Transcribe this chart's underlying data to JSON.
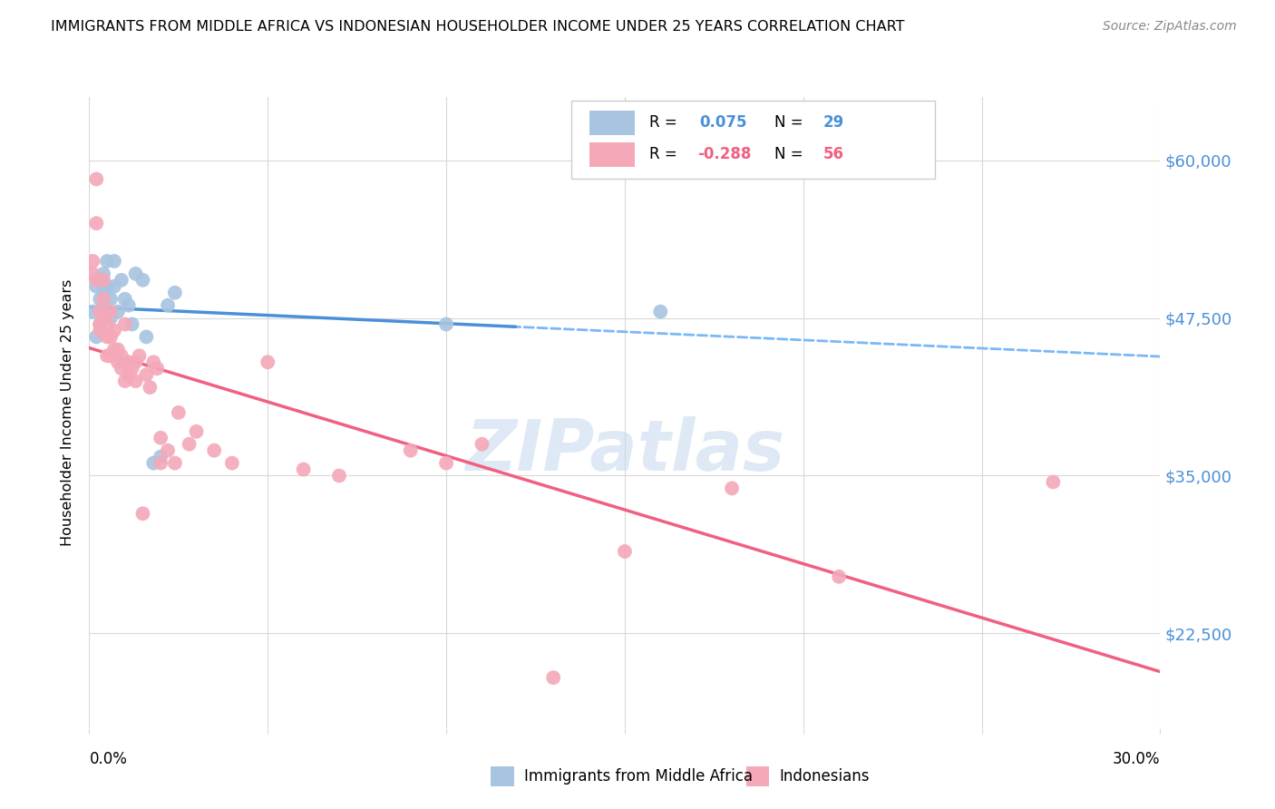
{
  "title": "IMMIGRANTS FROM MIDDLE AFRICA VS INDONESIAN HOUSEHOLDER INCOME UNDER 25 YEARS CORRELATION CHART",
  "source": "Source: ZipAtlas.com",
  "ylabel": "Householder Income Under 25 years",
  "yticks": [
    22500,
    35000,
    47500,
    60000
  ],
  "ytick_labels": [
    "$22,500",
    "$35,000",
    "$47,500",
    "$60,000"
  ],
  "xmin": 0.0,
  "xmax": 0.3,
  "ymin": 15000,
  "ymax": 65000,
  "color_blue": "#a8c4e0",
  "color_pink": "#f4a8b8",
  "line_blue_solid": "#4a90d9",
  "line_blue_dashed": "#7ab8f5",
  "line_pink": "#f06080",
  "watermark": "ZIPatlas",
  "r1": "0.075",
  "n1": "29",
  "r2": "-0.288",
  "n2": "56",
  "blue_scatter_x": [
    0.001,
    0.002,
    0.002,
    0.003,
    0.003,
    0.003,
    0.004,
    0.004,
    0.004,
    0.005,
    0.005,
    0.006,
    0.006,
    0.007,
    0.007,
    0.008,
    0.009,
    0.01,
    0.011,
    0.012,
    0.013,
    0.015,
    0.016,
    0.018,
    0.02,
    0.022,
    0.024,
    0.1,
    0.16
  ],
  "blue_scatter_y": [
    48000,
    50000,
    46000,
    50500,
    49000,
    47000,
    51000,
    49500,
    48500,
    52000,
    50000,
    49000,
    47500,
    52000,
    50000,
    48000,
    50500,
    49000,
    48500,
    47000,
    51000,
    50500,
    46000,
    36000,
    36500,
    48500,
    49500,
    47000,
    48000
  ],
  "pink_scatter_x": [
    0.001,
    0.001,
    0.002,
    0.002,
    0.002,
    0.003,
    0.003,
    0.003,
    0.004,
    0.004,
    0.004,
    0.005,
    0.005,
    0.005,
    0.006,
    0.006,
    0.006,
    0.007,
    0.007,
    0.008,
    0.008,
    0.009,
    0.009,
    0.01,
    0.01,
    0.011,
    0.011,
    0.012,
    0.013,
    0.013,
    0.014,
    0.015,
    0.016,
    0.017,
    0.018,
    0.019,
    0.02,
    0.02,
    0.022,
    0.024,
    0.025,
    0.028,
    0.03,
    0.035,
    0.04,
    0.05,
    0.06,
    0.07,
    0.09,
    0.1,
    0.11,
    0.13,
    0.15,
    0.18,
    0.21,
    0.27
  ],
  "pink_scatter_y": [
    52000,
    51000,
    58500,
    55000,
    50500,
    48000,
    47000,
    46500,
    50500,
    49000,
    47500,
    47000,
    46000,
    44500,
    48000,
    46000,
    44500,
    46500,
    45000,
    45000,
    44000,
    43500,
    44500,
    42500,
    47000,
    43000,
    44000,
    43500,
    44000,
    42500,
    44500,
    32000,
    43000,
    42000,
    44000,
    43500,
    38000,
    36000,
    37000,
    36000,
    40000,
    37500,
    38500,
    37000,
    36000,
    44000,
    35500,
    35000,
    37000,
    36000,
    37500,
    19000,
    29000,
    34000,
    27000,
    34500
  ]
}
